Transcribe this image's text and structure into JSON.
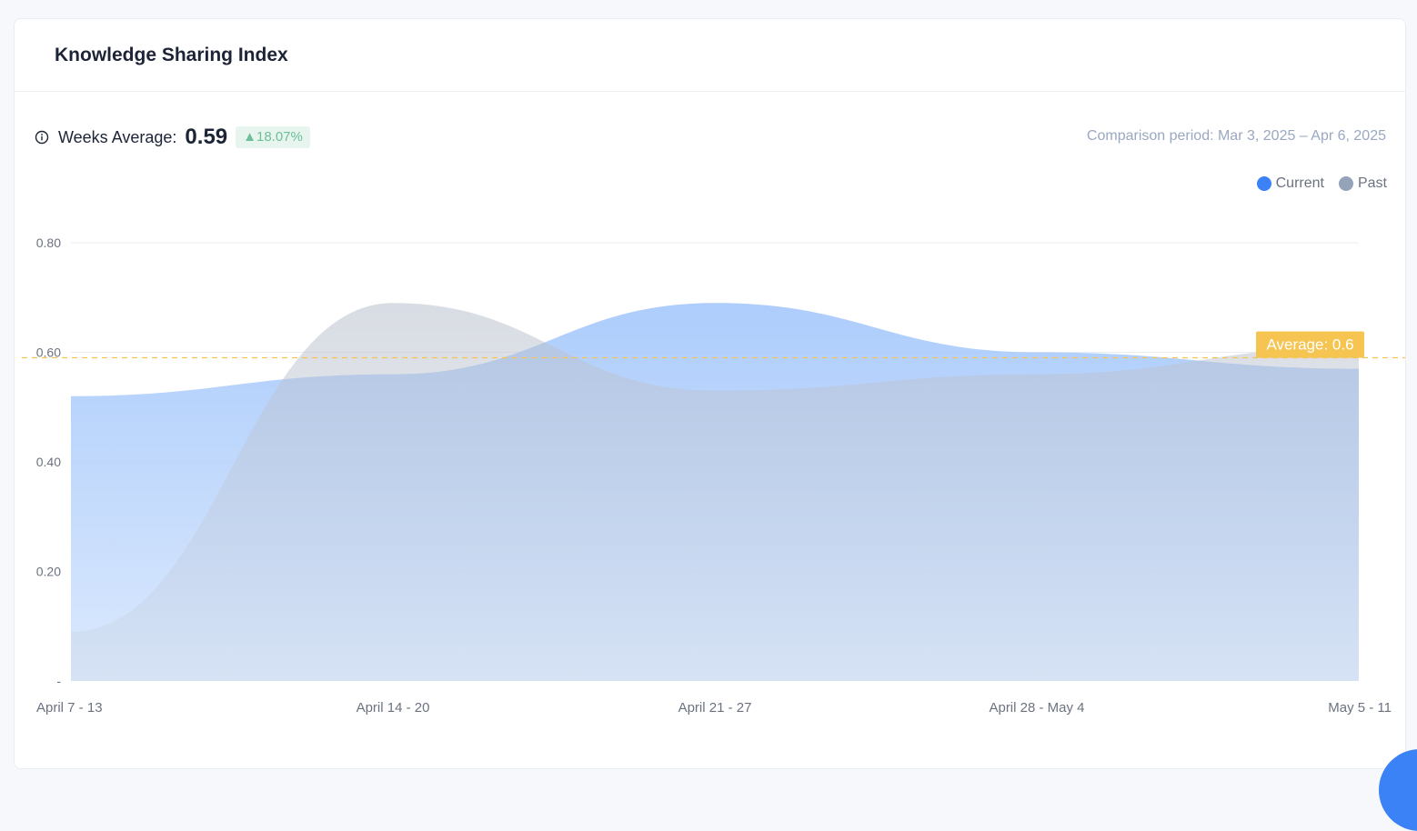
{
  "card": {
    "title": "Knowledge Sharing Index"
  },
  "stats": {
    "label": "Weeks Average:",
    "value": "0.59",
    "delta": "▲18.07%",
    "info_icon": "info-icon"
  },
  "comparison": "Comparison period: Mar 3, 2025 – Apr 6, 2025",
  "legend": [
    {
      "label": "Current",
      "color": "#3b82f6"
    },
    {
      "label": "Past",
      "color": "#94a3b8"
    }
  ],
  "chart_data": {
    "type": "area",
    "categories": [
      "April 7 - 13",
      "April 14 - 20",
      "April 21 - 27",
      "April 28 - May 4",
      "May 5 - 11"
    ],
    "series": [
      {
        "name": "Current",
        "values": [
          0.52,
          0.56,
          0.69,
          0.6,
          0.57
        ],
        "color": "#3b82f6"
      },
      {
        "name": "Past",
        "values": [
          0.09,
          0.69,
          0.53,
          0.56,
          0.61
        ],
        "color": "#94a3b8"
      }
    ],
    "y_ticks": [
      0,
      0.2,
      0.4,
      0.6,
      0.8
    ],
    "y_tick_labels": [
      "-",
      "0.20",
      "0.40",
      "0.60",
      "0.80"
    ],
    "ylim": [
      0,
      0.8
    ],
    "average": 0.59,
    "average_label": "Average: 0.6",
    "average_color": "#f5c451",
    "grid": true,
    "legend_position": "top-right"
  }
}
